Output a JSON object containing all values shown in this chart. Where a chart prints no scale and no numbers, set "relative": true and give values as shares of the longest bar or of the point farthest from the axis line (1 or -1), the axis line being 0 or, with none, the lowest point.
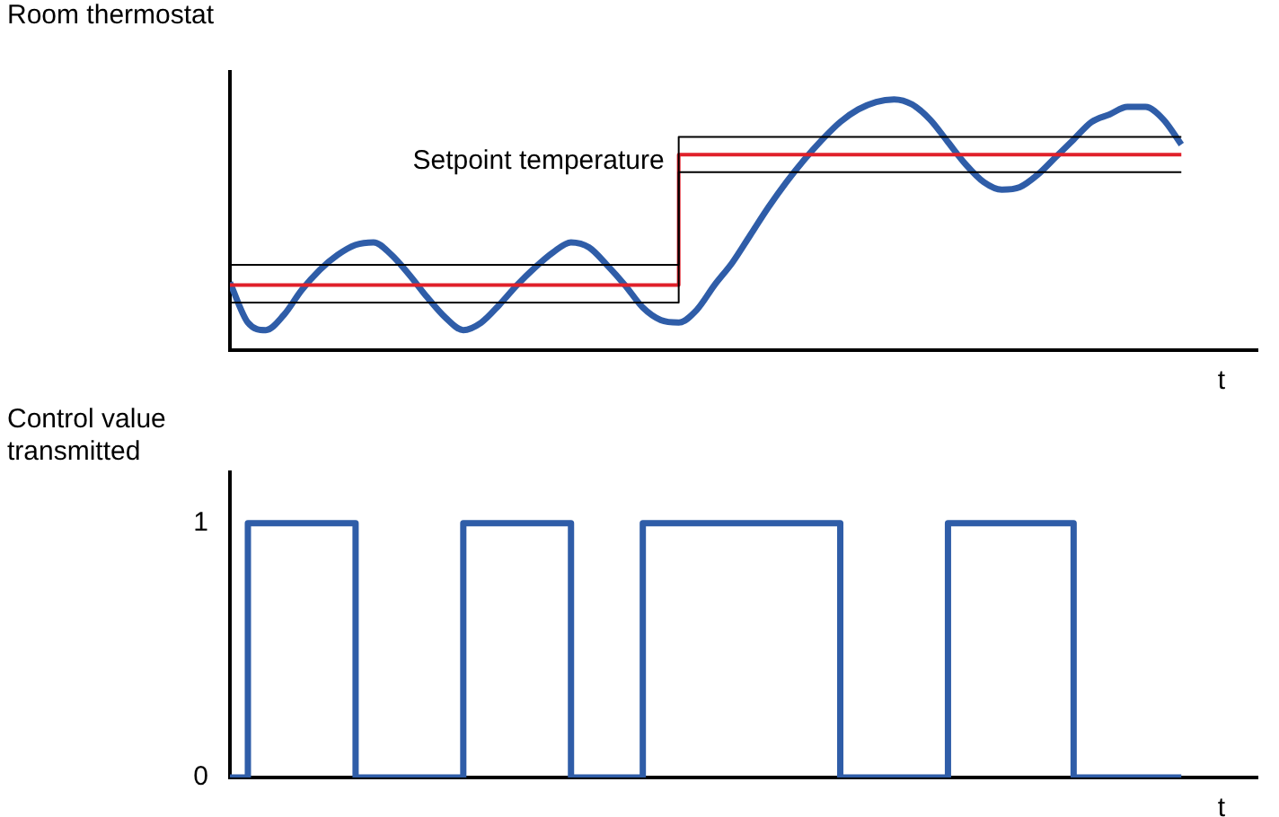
{
  "chart_data": [
    {
      "type": "line",
      "ylabel": "Room thermostat",
      "xlabel": "t",
      "relative": true,
      "grid": false,
      "legend": false,
      "tick_labels": false,
      "marker": "none",
      "categories": [
        null,
        null,
        null,
        null,
        null,
        null,
        null,
        null,
        null,
        null,
        null,
        null,
        null,
        null,
        null,
        null,
        null,
        null,
        null,
        null,
        null,
        null,
        null,
        null,
        null,
        null,
        null,
        null,
        null,
        null,
        null,
        null,
        null,
        null,
        null,
        null,
        null,
        null,
        null,
        null,
        null,
        null,
        null,
        null,
        null,
        null,
        null,
        null,
        null,
        null,
        null,
        null,
        null,
        null
      ],
      "series": [
        {
          "type": "line",
          "color": "#2f5da8",
          "values": [
            0.27,
            0.11,
            0.08,
            0.14,
            0.24,
            0.32,
            0.38,
            0.42,
            0.43,
            0.38,
            0.3,
            0.21,
            0.13,
            0.08,
            0.11,
            0.18,
            0.26,
            0.33,
            0.39,
            0.43,
            0.41,
            0.34,
            0.26,
            0.17,
            0.12,
            0.11,
            0.16,
            0.26,
            0.35,
            0.46,
            0.57,
            0.67,
            0.76,
            0.84,
            0.91,
            0.96,
            0.99,
            1,
            0.98,
            0.92,
            0.83,
            0.74,
            0.67,
            0.64,
            0.65,
            0.7,
            0.77,
            0.84,
            0.91,
            0.94,
            0.97,
            0.97,
            0.92,
            0.82
          ]
        },
        {
          "type": "step",
          "color": "#000000",
          "values": [
            0.34,
            0.34,
            0.34,
            0.34,
            0.34,
            0.34,
            0.34,
            0.34,
            0.34,
            0.34,
            0.34,
            0.34,
            0.34,
            0.34,
            0.34,
            0.34,
            0.34,
            0.34,
            0.34,
            0.34,
            0.34,
            0.34,
            0.34,
            0.34,
            0.34,
            0.85,
            0.85,
            0.85,
            0.85,
            0.85,
            0.85,
            0.85,
            0.85,
            0.85,
            0.85,
            0.85,
            0.85,
            0.85,
            0.85,
            0.85,
            0.85,
            0.85,
            0.85,
            0.85,
            0.85,
            0.85,
            0.85,
            0.85,
            0.85,
            0.85,
            0.85,
            0.85,
            0.85,
            0.85
          ]
        },
        {
          "type": "step",
          "color": "#000000",
          "values": [
            0.19,
            0.19,
            0.19,
            0.19,
            0.19,
            0.19,
            0.19,
            0.19,
            0.19,
            0.19,
            0.19,
            0.19,
            0.19,
            0.19,
            0.19,
            0.19,
            0.19,
            0.19,
            0.19,
            0.19,
            0.19,
            0.19,
            0.19,
            0.19,
            0.19,
            0.71,
            0.71,
            0.71,
            0.71,
            0.71,
            0.71,
            0.71,
            0.71,
            0.71,
            0.71,
            0.71,
            0.71,
            0.71,
            0.71,
            0.71,
            0.71,
            0.71,
            0.71,
            0.71,
            0.71,
            0.71,
            0.71,
            0.71,
            0.71,
            0.71,
            0.71,
            0.71,
            0.71,
            0.71
          ]
        },
        {
          "type": "step",
          "name": "Setpoint temperature",
          "color": "#e0202a",
          "values": [
            0.26,
            0.26,
            0.26,
            0.26,
            0.26,
            0.26,
            0.26,
            0.26,
            0.26,
            0.26,
            0.26,
            0.26,
            0.26,
            0.26,
            0.26,
            0.26,
            0.26,
            0.26,
            0.26,
            0.26,
            0.26,
            0.26,
            0.26,
            0.26,
            0.26,
            0.78,
            0.78,
            0.78,
            0.78,
            0.78,
            0.78,
            0.78,
            0.78,
            0.78,
            0.78,
            0.78,
            0.78,
            0.78,
            0.78,
            0.78,
            0.78,
            0.78,
            0.78,
            0.78,
            0.78,
            0.78,
            0.78,
            0.78,
            0.78,
            0.78,
            0.78,
            0.78,
            0.78,
            0.78
          ]
        }
      ]
    },
    {
      "type": "step",
      "ylabel": "Control value transmitted",
      "xlabel": "t",
      "grid": false,
      "legend": false,
      "tick_labels": "y",
      "marker": "none",
      "ylim": [
        0,
        1.2
      ],
      "yticks": [
        0,
        1
      ],
      "categories": [
        null,
        null,
        null,
        null,
        null,
        null,
        null,
        null,
        null,
        null,
        null,
        null,
        null,
        null,
        null,
        null,
        null,
        null,
        null,
        null,
        null,
        null,
        null,
        null,
        null,
        null,
        null,
        null,
        null,
        null,
        null,
        null,
        null,
        null,
        null,
        null,
        null,
        null,
        null,
        null,
        null,
        null,
        null,
        null,
        null,
        null,
        null,
        null,
        null,
        null,
        null,
        null,
        null,
        null
      ],
      "series": [
        {
          "color": "#2f5da8",
          "values": [
            0,
            1,
            1,
            1,
            1,
            1,
            1,
            0,
            0,
            0,
            0,
            0,
            0,
            1,
            1,
            1,
            1,
            1,
            1,
            0,
            0,
            0,
            0,
            1,
            1,
            1,
            1,
            1,
            1,
            1,
            1,
            1,
            1,
            1,
            0,
            0,
            0,
            0,
            0,
            0,
            1,
            1,
            1,
            1,
            1,
            1,
            1,
            0,
            0,
            0,
            0,
            0,
            0,
            0
          ]
        }
      ]
    }
  ]
}
